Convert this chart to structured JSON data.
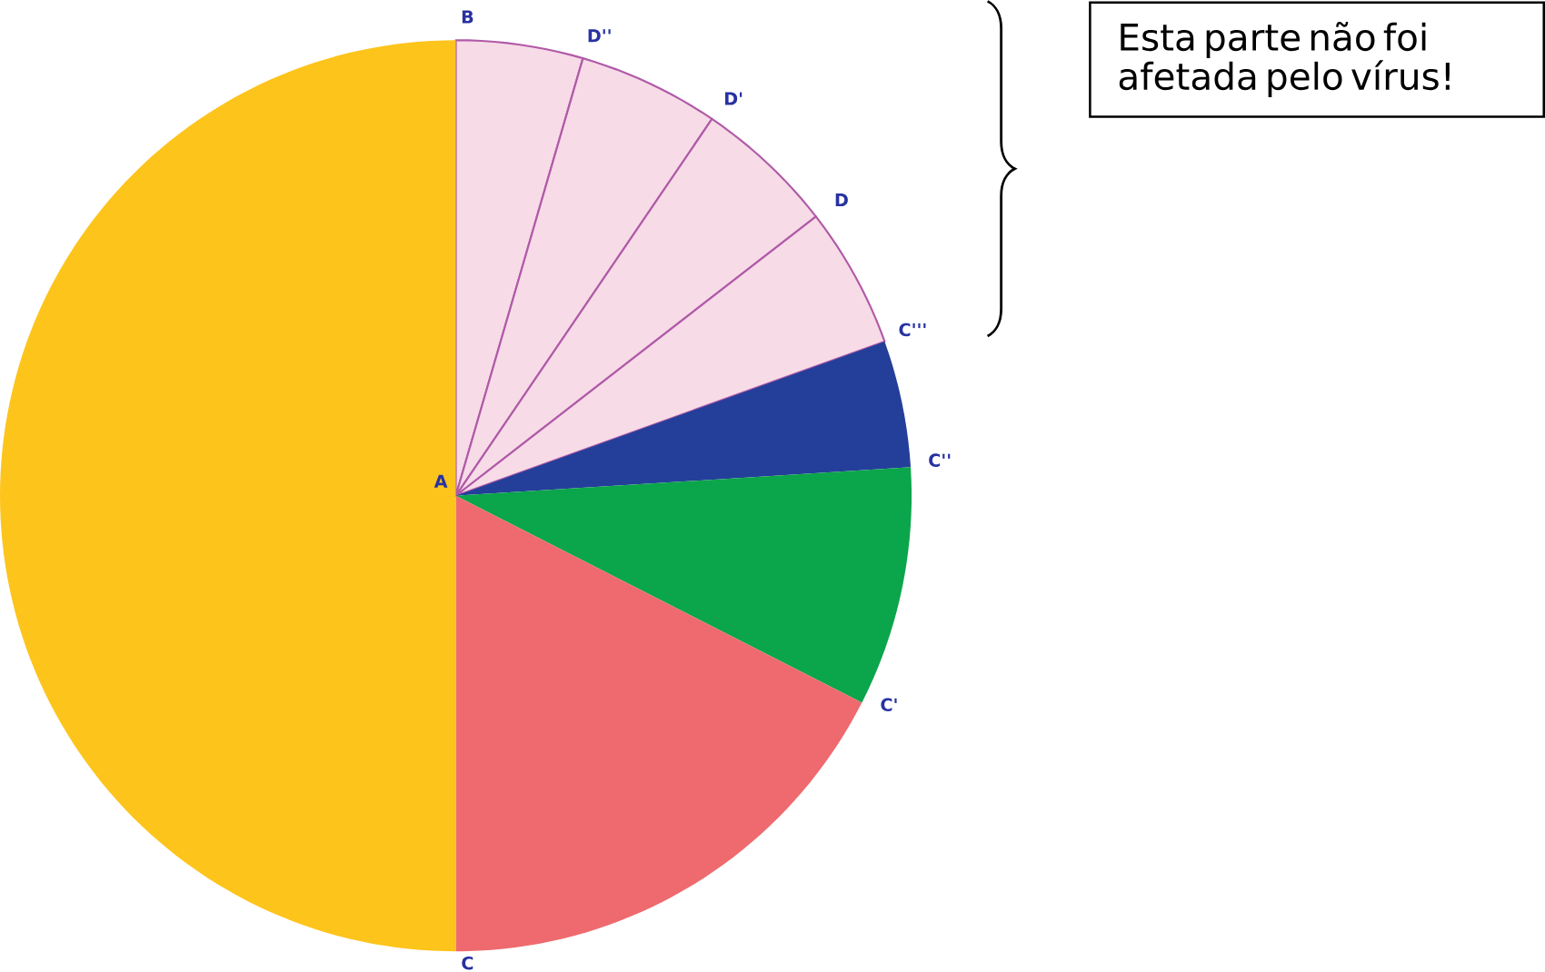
{
  "chart_data": {
    "type": "pie",
    "categories": [
      null,
      null,
      null,
      null,
      null,
      null,
      null,
      null
    ],
    "values": [
      4.5,
      5,
      5,
      5,
      4.5,
      8.5,
      17.5,
      50
    ],
    "colors": [
      "#f7dbe7",
      "#f7dbe7",
      "#f7dbe7",
      "#f7dbe7",
      "#243f99",
      "#0ba54b",
      "#ee6a6e",
      "#fdc41c"
    ],
    "annotations": [
      "A",
      "B",
      "D''",
      "D'",
      "D",
      "C'''",
      "C''",
      "C'",
      "C",
      "Esta parte não foi afetada pelo vírus!"
    ]
  }
}
